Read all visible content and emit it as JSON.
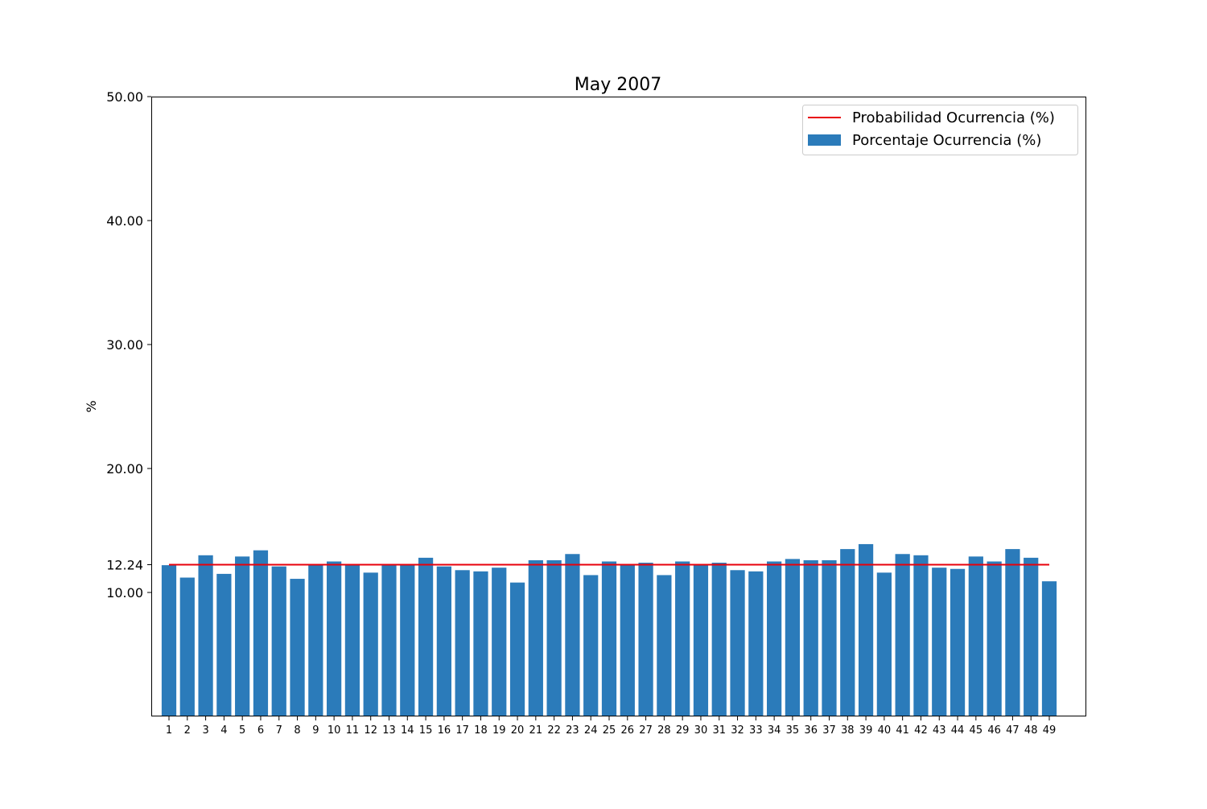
{
  "chart_data": {
    "type": "bar",
    "title": "May 2007",
    "xlabel": "",
    "ylabel": "%",
    "ylim": [
      0,
      50
    ],
    "yticks": [
      10,
      12.24,
      20,
      30,
      40,
      50
    ],
    "ytick_labels": [
      "10.00",
      "12.24",
      "20.00",
      "30.00",
      "40.00",
      "50.00"
    ],
    "categories": [
      "1",
      "2",
      "3",
      "4",
      "5",
      "6",
      "7",
      "8",
      "9",
      "10",
      "11",
      "12",
      "13",
      "14",
      "15",
      "16",
      "17",
      "18",
      "19",
      "20",
      "21",
      "22",
      "23",
      "24",
      "25",
      "26",
      "27",
      "28",
      "29",
      "30",
      "31",
      "32",
      "33",
      "34",
      "35",
      "36",
      "37",
      "38",
      "39",
      "40",
      "41",
      "42",
      "43",
      "44",
      "45",
      "46",
      "47",
      "48",
      "49"
    ],
    "series": [
      {
        "name": "Porcentaje Ocurrencia (%)",
        "type": "bar",
        "color": "#2b7bba",
        "values": [
          12.2,
          11.2,
          13.0,
          11.5,
          12.9,
          13.4,
          12.1,
          11.1,
          12.3,
          12.5,
          12.3,
          11.6,
          12.3,
          12.3,
          12.8,
          12.1,
          11.8,
          11.7,
          12.0,
          10.8,
          12.6,
          12.6,
          13.1,
          11.4,
          12.5,
          12.3,
          12.4,
          11.4,
          12.5,
          12.3,
          12.4,
          11.8,
          11.7,
          12.5,
          12.7,
          12.6,
          12.6,
          13.5,
          13.9,
          11.6,
          13.1,
          13.0,
          12.0,
          11.9,
          12.9,
          12.5,
          13.5,
          12.8,
          10.9
        ]
      },
      {
        "name": "Probabilidad Ocurrencia (%)",
        "type": "line",
        "color": "#e8000b",
        "value": 12.24
      }
    ],
    "legend": "top-right",
    "grid": false
  }
}
